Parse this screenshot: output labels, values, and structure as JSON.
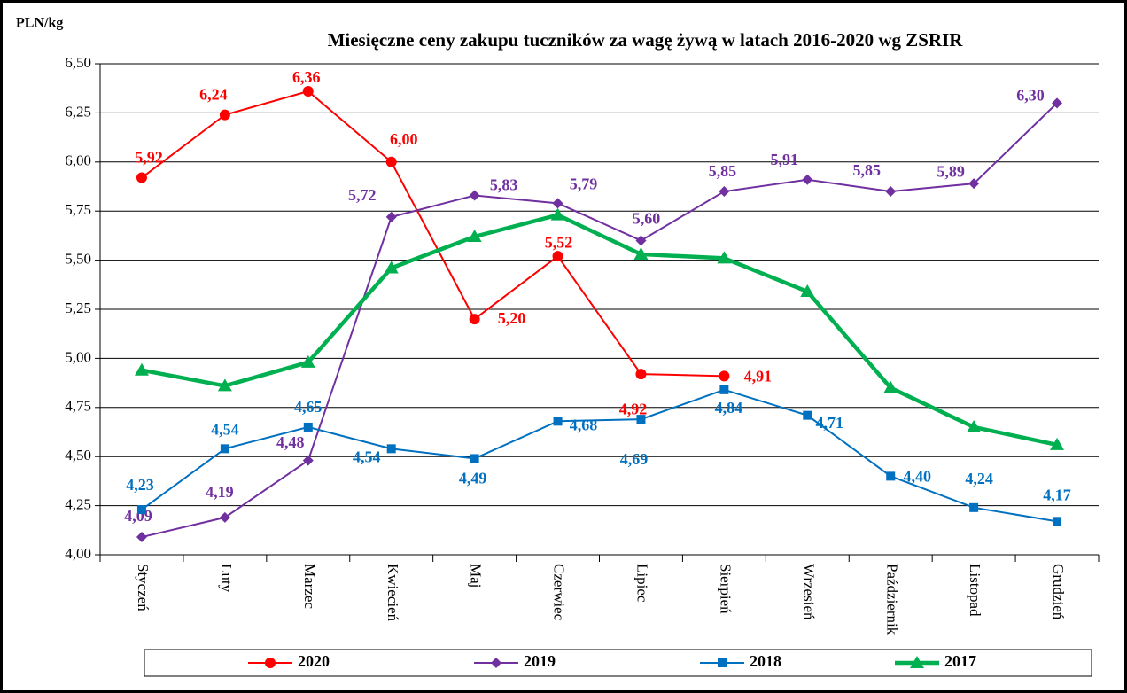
{
  "chart_data": {
    "type": "line",
    "title": "Miesięczne ceny zakupu tuczników za wagę żywą w latach 2016-2020  wg ZSRIR",
    "y_label": "PLN/kg",
    "categories": [
      "Styczeń",
      "Luty",
      "Marzec",
      "Kwiecień",
      "Maj",
      "Czerwiec",
      "Lipiec",
      "Sierpień",
      "Wrzesień",
      "Październik",
      "Listopad",
      "Grudzień"
    ],
    "ylim": [
      4.0,
      6.5
    ],
    "yticks": [
      {
        "value": 4.0,
        "label": "4,00"
      },
      {
        "value": 4.25,
        "label": "4,25"
      },
      {
        "value": 4.5,
        "label": "4,50"
      },
      {
        "value": 4.75,
        "label": "4,75"
      },
      {
        "value": 5.0,
        "label": "5,00"
      },
      {
        "value": 5.25,
        "label": "5,25"
      },
      {
        "value": 5.5,
        "label": "5,50"
      },
      {
        "value": 5.75,
        "label": "5,75"
      },
      {
        "value": 6.0,
        "label": "6,00"
      },
      {
        "value": 6.25,
        "label": "6,25"
      },
      {
        "value": 6.5,
        "label": "6,50"
      }
    ],
    "grid": true,
    "legend": "bottom",
    "series": [
      {
        "name": "2020",
        "color": "#ff0000",
        "values": [
          5.92,
          6.24,
          6.36,
          6.0,
          5.2,
          5.52,
          4.92,
          4.91,
          null,
          null,
          null,
          null
        ],
        "value_labels": [
          "5,92",
          "6,24",
          "6,36",
          "6,00",
          "5,20",
          "5,52",
          "4,92",
          "4,91",
          null,
          null,
          null,
          null
        ]
      },
      {
        "name": "2019",
        "color": "#7030a0",
        "values": [
          4.09,
          4.19,
          4.48,
          5.72,
          5.83,
          5.79,
          5.6,
          5.85,
          5.91,
          5.85,
          5.89,
          6.3
        ],
        "value_labels": [
          "4,09",
          "4,19",
          "4,48",
          "5,72",
          "5,83",
          "5,79",
          "5,60",
          "5,85",
          "5,91",
          "5,85",
          "5,89",
          "6,30"
        ]
      },
      {
        "name": "2018",
        "color": "#0070c0",
        "values": [
          4.23,
          4.54,
          4.65,
          4.54,
          4.49,
          4.68,
          4.69,
          4.84,
          4.71,
          4.4,
          4.24,
          4.17
        ],
        "value_labels": [
          "4,23",
          "4,54",
          "4,65",
          "4,54",
          "4,49",
          "4,68",
          "4,69",
          "4,84",
          "4,71",
          "4,40",
          "4,24",
          "4,17"
        ]
      },
      {
        "name": "2017",
        "color": "#00b050",
        "values": [
          4.94,
          4.86,
          4.98,
          5.46,
          5.62,
          5.73,
          5.53,
          5.51,
          5.34,
          4.85,
          4.65,
          4.56
        ]
      }
    ]
  }
}
